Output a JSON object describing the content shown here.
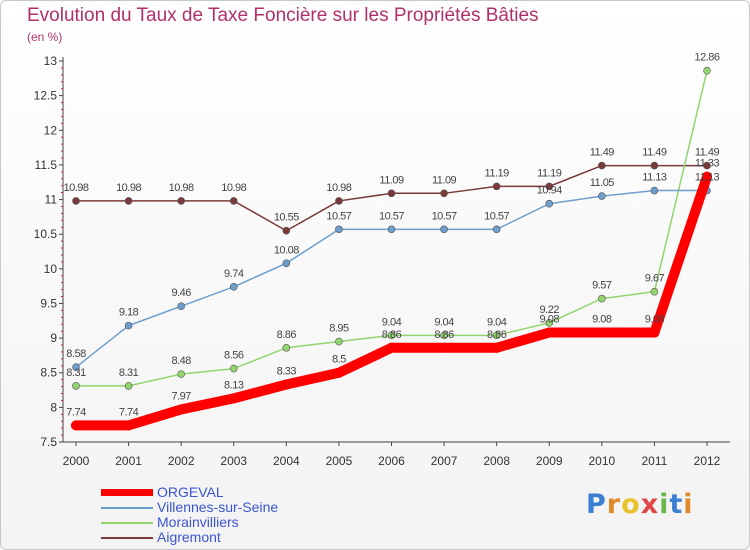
{
  "chart_data": {
    "type": "line",
    "title": "Evolution du Taux de Taxe Foncière sur les Propriétés Bâties",
    "subtitle": "(en %)",
    "x": [
      "2000",
      "2001",
      "2002",
      "2003",
      "2004",
      "2005",
      "2006",
      "2007",
      "2008",
      "2009",
      "2010",
      "2011",
      "2012"
    ],
    "ylim": [
      7.5,
      13
    ],
    "yticks": [
      "7.5",
      "8",
      "8.5",
      "9",
      "9.5",
      "10",
      "10.5",
      "11",
      "11.5",
      "12",
      "12.5",
      "13"
    ],
    "grid": false,
    "legend_position": "bottom-left",
    "series": [
      {
        "name": "ORGEVAL",
        "color": "#ff0000",
        "values": [
          7.74,
          7.74,
          7.97,
          8.13,
          8.33,
          8.5,
          8.86,
          8.86,
          8.86,
          9.08,
          9.08,
          9.08,
          11.33
        ],
        "labels": [
          "7.74",
          "7.74",
          "7.97",
          "8.13",
          "8.33",
          "8.5",
          "8.86",
          "8.86",
          "8.86",
          "9.08",
          "9.08",
          "9.08",
          "11.33"
        ]
      },
      {
        "name": "Villennes-sur-Seine",
        "color": "#6e9fcc",
        "values": [
          8.58,
          9.18,
          9.46,
          9.74,
          10.08,
          10.57,
          10.57,
          10.57,
          10.57,
          10.94,
          11.05,
          11.13,
          11.13
        ],
        "labels": [
          "8.58",
          "9.18",
          "9.46",
          "9.74",
          "10.08",
          "10.57",
          "10.57",
          "10.57",
          "10.57",
          "10.94",
          "11.05",
          "11.13",
          "11.13"
        ]
      },
      {
        "name": "Morainvilliers",
        "color": "#92d46e",
        "values": [
          8.31,
          8.31,
          8.48,
          8.56,
          8.86,
          8.95,
          9.04,
          9.04,
          9.04,
          9.22,
          9.57,
          9.67,
          12.86
        ],
        "labels": [
          "8.31",
          "8.31",
          "8.48",
          "8.56",
          "8.86",
          "8.95",
          "9.04",
          "9.04",
          "9.04",
          "9.22",
          "9.57",
          "9.67",
          "12.86"
        ]
      },
      {
        "name": "Aigremont",
        "color": "#7a3a3a",
        "values": [
          10.98,
          10.98,
          10.98,
          10.98,
          10.55,
          10.98,
          11.09,
          11.09,
          11.19,
          11.19,
          11.49,
          11.49,
          11.49
        ],
        "labels": [
          "10.98",
          "10.98",
          "10.98",
          "10.98",
          "10.55",
          "10.98",
          "11.09",
          "11.09",
          "11.19",
          "11.19",
          "11.49",
          "11.49",
          "11.49"
        ]
      }
    ]
  },
  "logo": {
    "letters": [
      "P",
      "r",
      "o",
      "x",
      "i",
      "t",
      "i"
    ],
    "colors": [
      "#3a7fd0",
      "#e08a2a",
      "#e8c32e",
      "#e04848",
      "#6bb84a",
      "#3a7fd0",
      "#e08a2a"
    ]
  }
}
